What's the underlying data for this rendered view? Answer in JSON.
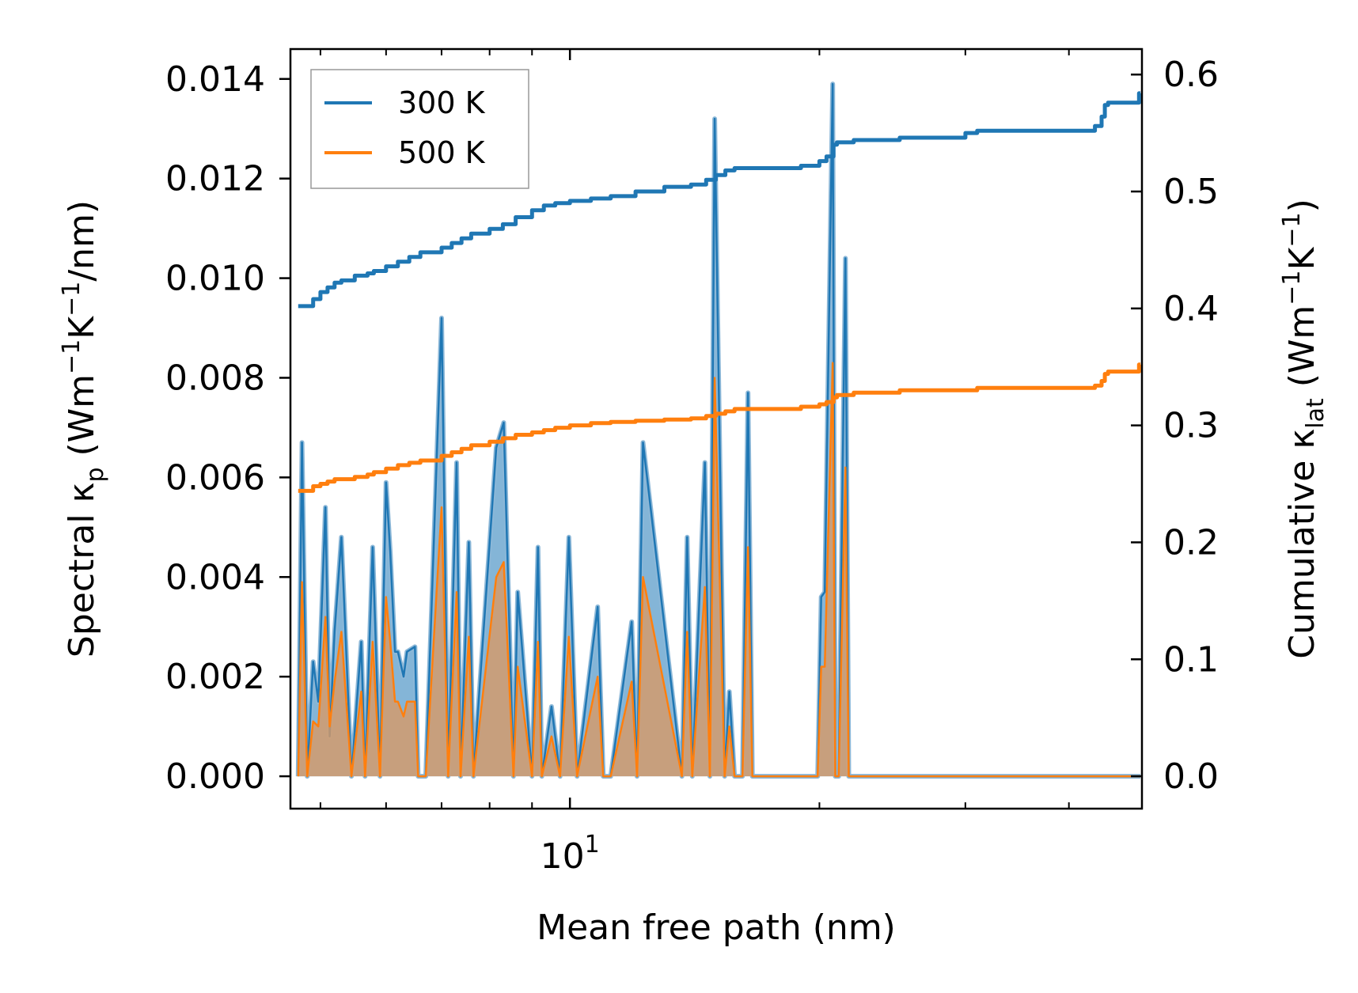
{
  "chart_data": {
    "type": "line",
    "xscale": "log",
    "xlabel": "Mean free path (nm)",
    "xlim": [
      4.6,
      49
    ],
    "x_major_ticks": [
      {
        "value": 10,
        "base": "10",
        "exp": "1"
      }
    ],
    "x_minor_ticks": [
      5,
      6,
      7,
      8,
      9,
      20,
      30,
      40
    ],
    "ylabel_left": {
      "pre": "Spectral κ",
      "sub": "p",
      "post1": " (Wm",
      "sup1": "−1",
      "post2": "K",
      "sup2": "−1",
      "post3": "/nm)"
    },
    "ylim_left": [
      -0.00065,
      0.0146
    ],
    "yticks_left": [
      0.0,
      0.002,
      0.004,
      0.006,
      0.008,
      0.01,
      0.012,
      0.014
    ],
    "ytick_labels_left": [
      "0.000",
      "0.002",
      "0.004",
      "0.006",
      "0.008",
      "0.010",
      "0.012",
      "0.014"
    ],
    "ylabel_right": {
      "pre": "Cumulative κ",
      "sub": "lat",
      "post1": " (Wm",
      "sup1": "−1",
      "post2": "K",
      "sup2": "−1",
      "post3": ")"
    },
    "ylim_right": [
      -0.0277,
      0.6218
    ],
    "yticks_right": [
      0.0,
      0.1,
      0.2,
      0.3,
      0.4,
      0.5,
      0.6
    ],
    "ytick_labels_right": [
      "0.0",
      "0.1",
      "0.2",
      "0.3",
      "0.4",
      "0.5",
      "0.6"
    ],
    "legend": {
      "position": "upper left",
      "entries": [
        "300 K",
        "500 K"
      ]
    },
    "colors": {
      "300K": "#1f77b4",
      "500K": "#ff7f0e",
      "fill300": "#5b9cc9",
      "fill500": "#d89a66",
      "edge300": "#8db8d8"
    },
    "series": [
      {
        "name": "300 K",
        "axis": "left",
        "kind": "spectral",
        "x": [
          4.7,
          4.75,
          4.82,
          4.9,
          4.97,
          5.07,
          5.13,
          5.2,
          5.3,
          5.45,
          5.6,
          5.66,
          5.78,
          5.9,
          6.0,
          6.07,
          6.15,
          6.2,
          6.3,
          6.36,
          6.5,
          6.56,
          6.7,
          7.0,
          7.13,
          7.3,
          7.38,
          7.55,
          7.65,
          8.15,
          8.32,
          8.55,
          8.65,
          9.0,
          9.15,
          9.25,
          9.5,
          9.73,
          9.97,
          10.2,
          10.8,
          10.97,
          11.2,
          11.87,
          12.05,
          12.25,
          13.65,
          13.85,
          14.05,
          14.55,
          14.75,
          14.95,
          15.37,
          15.57,
          15.8,
          16.15,
          16.4,
          16.6,
          19.9,
          20.1,
          20.3,
          20.75,
          20.9,
          21.1,
          21.5,
          21.7,
          21.95,
          22.2,
          30.3,
          30.5,
          30.7,
          31.0,
          43.6,
          43.8,
          44.05,
          44.25,
          44.5,
          48.4,
          48.6,
          48.8
        ],
        "y": [
          0,
          0.0067,
          0,
          0.0023,
          0.0015,
          0.0054,
          0.0008,
          0.0029,
          0.0048,
          0,
          0.0027,
          0,
          0.0046,
          0,
          0.0059,
          0.0045,
          0.0025,
          0.0025,
          0.002,
          0.0025,
          0.0026,
          0,
          0,
          0.0092,
          0,
          0.0063,
          0,
          0.0047,
          0,
          0.0066,
          0.0071,
          0,
          0.0037,
          0,
          0.0046,
          0,
          0.0014,
          0,
          0.0048,
          0,
          0.0034,
          0,
          0,
          0.0031,
          0,
          0.0067,
          0,
          0.0048,
          0,
          0.0063,
          0,
          0.0132,
          0,
          0.0017,
          0,
          0,
          0.0077,
          0,
          0,
          0.0036,
          0.0037,
          0.0139,
          0,
          0,
          0.0104,
          0,
          0,
          0,
          0,
          0,
          0,
          0,
          0,
          0,
          0,
          0,
          0,
          0,
          0,
          0
        ]
      },
      {
        "name": "500 K",
        "axis": "left",
        "kind": "spectral",
        "x": [
          4.7,
          4.75,
          4.82,
          4.9,
          4.97,
          5.07,
          5.13,
          5.2,
          5.3,
          5.45,
          5.6,
          5.66,
          5.78,
          5.9,
          6.0,
          6.07,
          6.15,
          6.2,
          6.3,
          6.36,
          6.5,
          6.56,
          6.7,
          7.0,
          7.13,
          7.3,
          7.38,
          7.55,
          7.65,
          8.15,
          8.32,
          8.55,
          8.65,
          9.0,
          9.15,
          9.25,
          9.5,
          9.73,
          9.97,
          10.2,
          10.8,
          10.97,
          11.2,
          11.87,
          12.05,
          12.25,
          13.65,
          13.85,
          14.05,
          14.55,
          14.75,
          14.95,
          15.37,
          15.57,
          15.8,
          16.15,
          16.4,
          16.6,
          19.9,
          20.1,
          20.3,
          20.75,
          20.9,
          21.1,
          21.5,
          21.7,
          21.95,
          22.2,
          30.3,
          30.5,
          30.7,
          31.0,
          43.6,
          43.8,
          44.05,
          44.25,
          44.5,
          48.4,
          48.6,
          48.8
        ],
        "y": [
          0,
          0.0039,
          0,
          0.0011,
          0.001,
          0.0032,
          0.001,
          0.0019,
          0.0029,
          0,
          0.0017,
          0,
          0.0027,
          0,
          0.0036,
          0.0027,
          0.0015,
          0.0015,
          0.0012,
          0.0015,
          0.0015,
          0,
          0,
          0.0054,
          0,
          0.0037,
          0,
          0.0028,
          0,
          0.004,
          0.0043,
          0,
          0.0022,
          0,
          0.0027,
          0,
          0.0008,
          0,
          0.0028,
          0,
          0.002,
          0,
          0,
          0.0019,
          0,
          0.004,
          0,
          0.0029,
          0,
          0.0038,
          0,
          0.008,
          0,
          0.001,
          0,
          0,
          0.0046,
          0,
          0,
          0.0022,
          0.0022,
          0.0083,
          0,
          0,
          0.0062,
          0,
          0,
          0,
          0,
          0,
          0,
          0,
          0,
          0,
          0,
          0,
          0,
          0,
          0,
          0
        ]
      },
      {
        "name": "300 K",
        "axis": "right",
        "kind": "cumulative",
        "x": [
          4.7,
          4.8,
          4.9,
          5.0,
          5.1,
          5.2,
          5.3,
          5.5,
          5.7,
          5.8,
          6.0,
          6.2,
          6.4,
          6.6,
          7.0,
          7.2,
          7.4,
          7.6,
          8.0,
          8.3,
          8.6,
          9.0,
          9.3,
          9.6,
          10.0,
          10.6,
          11.2,
          12.0,
          13.0,
          14.0,
          14.6,
          15.0,
          15.4,
          15.8,
          16.2,
          17.0,
          19.0,
          20.0,
          20.4,
          20.8,
          21.0,
          22.0,
          25.0,
          30.0,
          31.0,
          43.0,
          43.8,
          44.2,
          44.6,
          48.0,
          48.6,
          48.8
        ],
        "y": [
          0.402,
          0.402,
          0.408,
          0.414,
          0.418,
          0.422,
          0.424,
          0.428,
          0.43,
          0.432,
          0.436,
          0.44,
          0.444,
          0.448,
          0.452,
          0.456,
          0.46,
          0.464,
          0.468,
          0.472,
          0.478,
          0.484,
          0.488,
          0.49,
          0.492,
          0.494,
          0.496,
          0.5,
          0.504,
          0.506,
          0.51,
          0.514,
          0.518,
          0.52,
          0.52,
          0.52,
          0.522,
          0.526,
          0.53,
          0.54,
          0.542,
          0.544,
          0.546,
          0.55,
          0.552,
          0.556,
          0.564,
          0.574,
          0.576,
          0.576,
          0.584,
          0.584
        ]
      },
      {
        "name": "500 K",
        "axis": "right",
        "kind": "cumulative",
        "x": [
          4.7,
          4.8,
          4.9,
          5.0,
          5.1,
          5.2,
          5.3,
          5.5,
          5.7,
          5.8,
          6.0,
          6.2,
          6.4,
          6.6,
          7.0,
          7.2,
          7.4,
          7.6,
          8.0,
          8.3,
          8.6,
          9.0,
          9.3,
          9.6,
          10.0,
          10.6,
          11.2,
          12.0,
          13.0,
          14.0,
          14.6,
          15.0,
          15.4,
          15.8,
          16.2,
          17.0,
          19.0,
          20.0,
          20.4,
          20.8,
          21.0,
          22.0,
          25.0,
          30.0,
          31.0,
          43.0,
          43.8,
          44.2,
          44.6,
          48.0,
          48.6,
          48.8
        ],
        "y": [
          0.244,
          0.244,
          0.248,
          0.25,
          0.252,
          0.254,
          0.254,
          0.256,
          0.258,
          0.26,
          0.263,
          0.266,
          0.268,
          0.27,
          0.274,
          0.277,
          0.28,
          0.283,
          0.286,
          0.289,
          0.292,
          0.294,
          0.296,
          0.298,
          0.3,
          0.302,
          0.303,
          0.304,
          0.305,
          0.306,
          0.308,
          0.31,
          0.312,
          0.314,
          0.314,
          0.314,
          0.316,
          0.318,
          0.32,
          0.324,
          0.326,
          0.328,
          0.33,
          0.33,
          0.332,
          0.334,
          0.338,
          0.344,
          0.346,
          0.346,
          0.352,
          0.352
        ]
      }
    ]
  }
}
